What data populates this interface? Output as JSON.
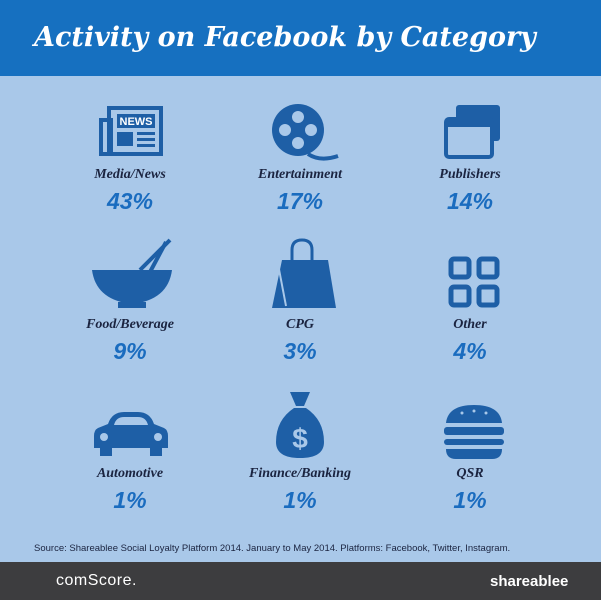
{
  "header": {
    "title": "Activity on Facebook by Category"
  },
  "items": [
    {
      "label": "Media/News",
      "value": "43%"
    },
    {
      "label": "Entertainment",
      "value": "17%"
    },
    {
      "label": "Publishers",
      "value": "14%"
    },
    {
      "label": "Food/Beverage",
      "value": "9%"
    },
    {
      "label": "CPG",
      "value": "3%"
    },
    {
      "label": "Other",
      "value": "4%"
    },
    {
      "label": "Automotive",
      "value": "1%"
    },
    {
      "label": "Finance/Banking",
      "value": "1%"
    },
    {
      "label": "QSR",
      "value": "1%"
    }
  ],
  "source": "Source: Shareablee Social Loyalty Platform 2014. January to May 2014. Platforms: Facebook, Twitter, Instagram.",
  "footer": {
    "left": "comScore.",
    "right": "shareablee"
  }
}
